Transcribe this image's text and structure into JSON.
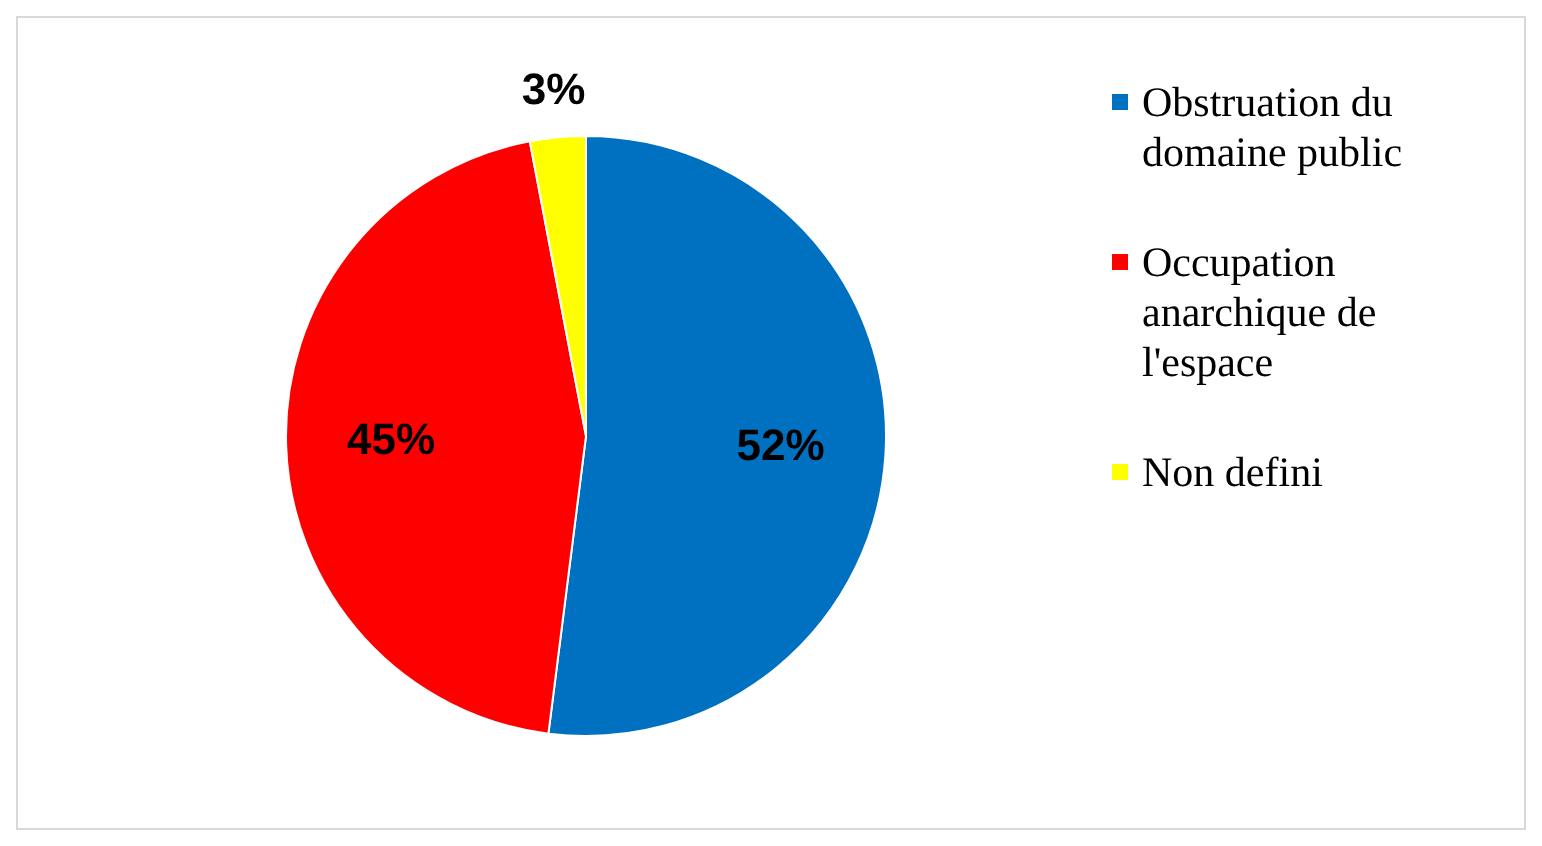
{
  "chart_data": {
    "type": "pie",
    "categories": [
      "Obstruation du domaine public",
      "Occupation anarchique de l'espace",
      "Non defini"
    ],
    "values": [
      52,
      45,
      3
    ],
    "colors": [
      "#0070c0",
      "#ff0000",
      "#ffff00"
    ],
    "value_labels": [
      "52%",
      "45%",
      "3%"
    ],
    "legend": "right"
  }
}
